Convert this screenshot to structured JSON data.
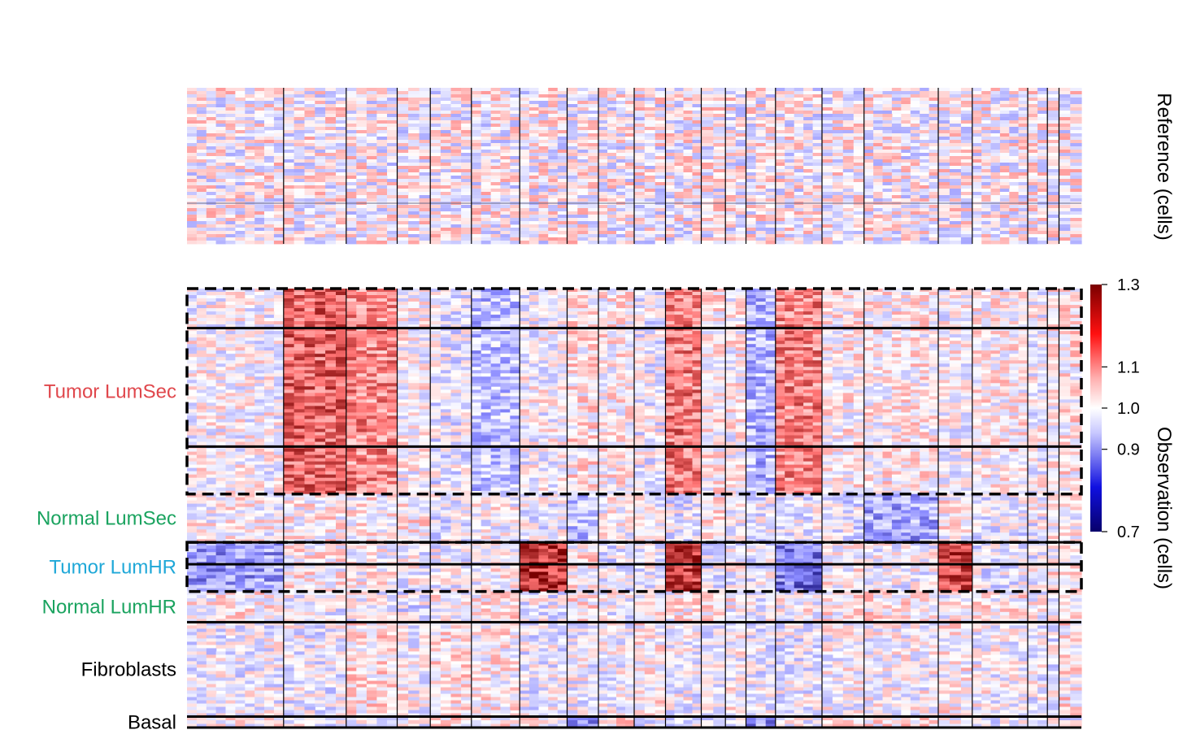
{
  "chart_data": {
    "type": "heatmap",
    "description_free": true,
    "reference_ylabel": "Reference (cells)",
    "observation_ylabel": "Observation (cells)",
    "colorbar": {
      "ticks": [
        "1.3",
        "1.1",
        "1.0",
        "0.9",
        "0.7"
      ],
      "tick_values": [
        1.3,
        1.1,
        1.0,
        0.9,
        0.7
      ],
      "vmin": 0.7,
      "vmax": 1.3,
      "colors": {
        "low": "#08006b",
        "mid": "#ffffff",
        "high": "#7a0000"
      }
    },
    "chromosome_boundaries": [
      0.108,
      0.178,
      0.235,
      0.272,
      0.318,
      0.372,
      0.425,
      0.46,
      0.5,
      0.535,
      0.575,
      0.602,
      0.625,
      0.658,
      0.71,
      0.757,
      0.84,
      0.878,
      0.94,
      0.962,
      0.975
    ],
    "groups": [
      {
        "label": "Tumor LumSec",
        "color": "#e0474c",
        "rows": [
          0.0,
          0.468
        ],
        "dashed": true,
        "subclusters": [
          0.0,
          0.09,
          0.36
        ]
      },
      {
        "label": "Normal LumSec",
        "color": "#1aa35f",
        "rows": [
          0.468,
          0.578
        ],
        "dashed": false
      },
      {
        "label": "Tumor LumHR",
        "color": "#1fa8d8",
        "rows": [
          0.578,
          0.69
        ],
        "dashed": true,
        "subclusters": [
          0.578,
          0.628
        ]
      },
      {
        "label": "Normal LumHR",
        "color": "#1aa35f",
        "rows": [
          0.69,
          0.76
        ],
        "dashed": false
      },
      {
        "label": "Fibroblasts",
        "color": "#000000",
        "rows": [
          0.76,
          0.975
        ],
        "dashed": false
      },
      {
        "label": "Basal",
        "color": "#000000",
        "rows": [
          0.975,
          1.0
        ],
        "dashed": false
      }
    ]
  }
}
